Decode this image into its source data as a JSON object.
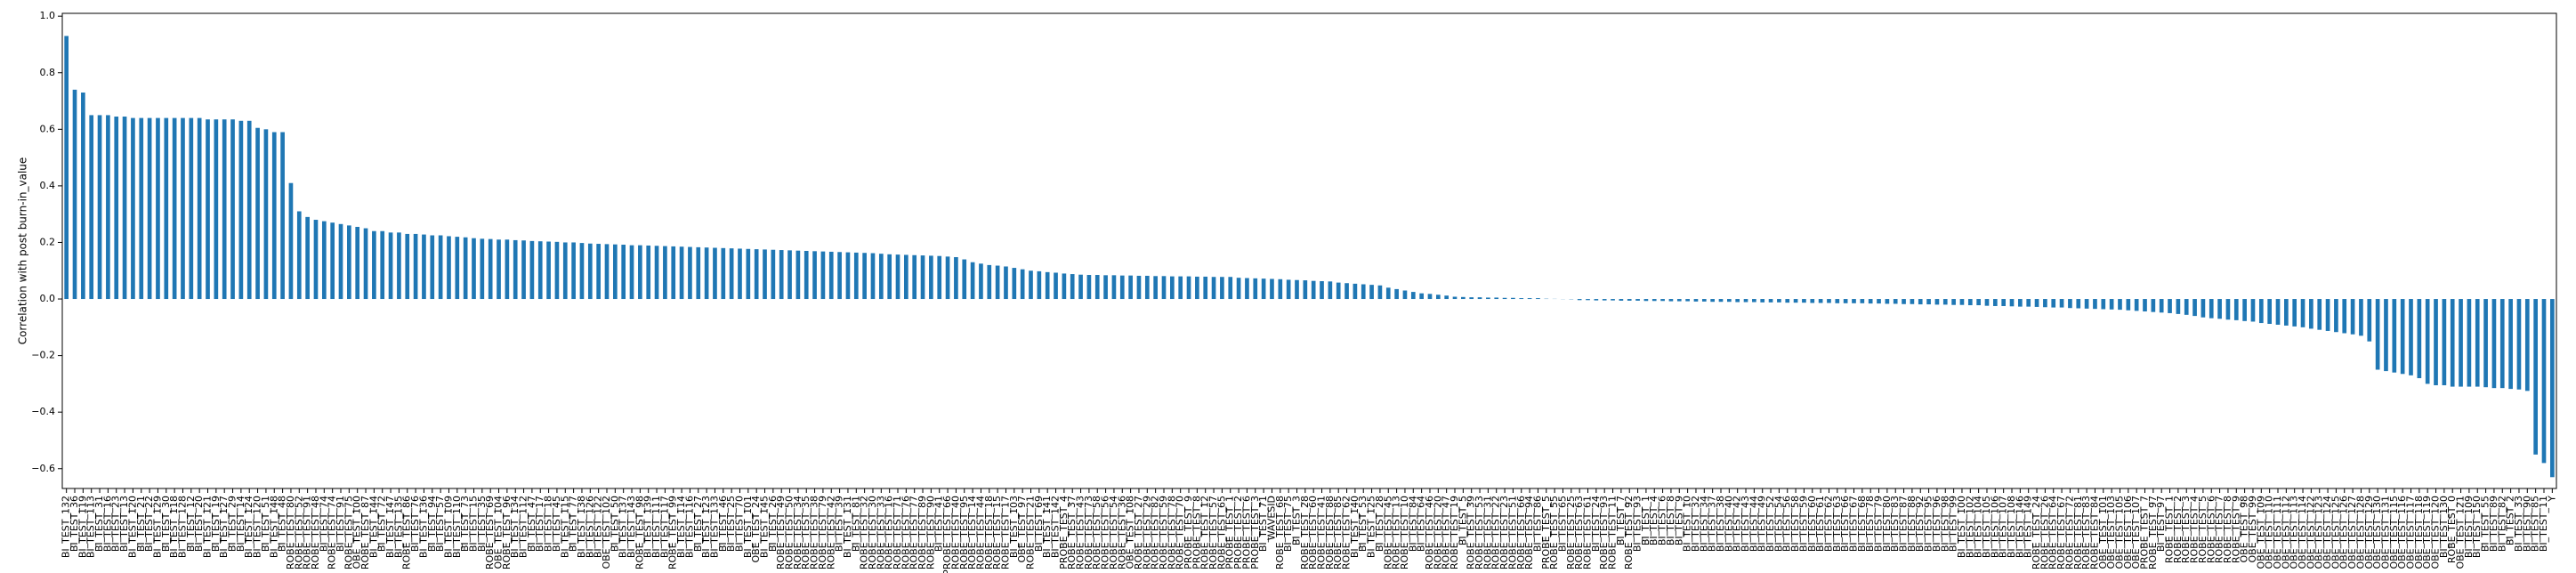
{
  "chart_data": {
    "type": "bar",
    "ylabel": "Correlation with post burn-in_value",
    "color": "#1f77b4",
    "grid": false,
    "ylim": [
      -0.67,
      1.01
    ],
    "yticks": [
      {
        "value": -0.6,
        "label": "−0.6"
      },
      {
        "value": -0.4,
        "label": "−0.4"
      },
      {
        "value": -0.2,
        "label": "−0.2"
      },
      {
        "value": 0,
        "label": "0.0"
      },
      {
        "value": 0.2,
        "label": "0.2"
      },
      {
        "value": 0.4,
        "label": "0.4"
      },
      {
        "value": 0.6,
        "label": "0.6"
      },
      {
        "value": 0.8,
        "label": "0.8"
      },
      {
        "value": 1,
        "label": "1.0"
      }
    ],
    "categories": [
      "BI_TEST_132",
      "BI_TEST_36",
      "BI_TEST_119",
      "BI_TEST_113",
      "BI_TEST_31",
      "BI_TEST_16",
      "BI_TEST_23",
      "BI_TEST_13",
      "BI_TEST_120",
      "BI_TEST_21",
      "BI_TEST_22",
      "BI_TEST_129",
      "BI_TEST_30",
      "BI_TEST_118",
      "BI_TEST_128",
      "BI_TEST_12",
      "BI_TEST_20",
      "BI_TEST_121",
      "BI_TEST_19",
      "BI_TEST_127",
      "BI_TEST_29",
      "BI_TEST_14",
      "BI_TEST_124",
      "BI_TEST_120",
      "BI_TEST_51",
      "BI_TEST_148",
      "BI_TEST_48",
      "ROBE_TEST_80",
      "ROBE_TEST_52",
      "ROBE_TEST_91",
      "ROBE_TEST_48",
      "BI_TEST_74",
      "ROBE_TEST_74",
      "BI_TEST_91",
      "ROBE_TEST_75",
      "OBE_TEST_100",
      "ROBE_TEST_87",
      "BI_TEST_144",
      "BI_TEST_72",
      "BI_TEST_147",
      "BI_TEST_135",
      "ROBE_TEST_86",
      "BI_TEST_76",
      "BI_TEST_136",
      "BI_TEST_94",
      "BI_TEST_57",
      "BI_TEST_109",
      "BI_TEST_110",
      "BI_TEST_73",
      "BI_TEST_15",
      "BI_TEST_35",
      "ROBE_TEST_69",
      "OBE_TEST_104",
      "ROBE_TEST_96",
      "BI_TEST_134",
      "BI_TEST_112",
      "BI_TEST_47",
      "BI_TEST_17",
      "BI_TEST_18",
      "BI_TEST_45",
      "BI_TEST_115",
      "BI_TEST_77",
      "BI_TEST_138",
      "BI_TEST_126",
      "BI_TEST_122",
      "OBE_TEST_102",
      "BI_TEST_50",
      "BI_TEST_137",
      "BI_TEST_143",
      "ROBE_TEST_98",
      "BI_TEST_139",
      "BI_TEST_111",
      "BI_TEST_117",
      "ROBE_TEST_99",
      "BI_TEST_114",
      "BI_TEST_116",
      "BI_TEST_27",
      "BI_TEST_123",
      "BI_TEST_133",
      "BI_TEST_46",
      "BI_TEST_25",
      "BI_TEST_70",
      "BI_TEST_101",
      "OBE_TEST_24",
      "BI_TEST_145",
      "BI_TEST_26",
      "ROBE_TEST_49",
      "ROBE_TEST_50",
      "ROBE_TEST_34",
      "ROBE_TEST_35",
      "ROBE_TEST_38",
      "ROBE_TEST_79",
      "ROBE_TEST_42",
      "BI_TEST_39",
      "BI_TEST_131",
      "BI_TEST_81",
      "ROBE_TEST_32",
      "ROBE_TEST_30",
      "ROBE_TEST_33",
      "ROBE_TEST_16",
      "ROBE_TEST_71",
      "ROBE_TEST_76",
      "ROBE_TEST_77",
      "ROBE_TEST_89",
      "ROBE_TEST_90",
      "BI_TEST_41",
      "PROBE_TEST_66",
      "ROBE_TEST_40",
      "ROBE_TEST_95",
      "ROBE_TEST_14",
      "ROBE_TEST_44",
      "ROBE_TEST_18",
      "ROBE_TEST_15",
      "ROBE_TEST_17",
      "BI_TEST_103",
      "OBE_TEST_97",
      "ROBE_TEST_21",
      "BI_TEST_69",
      "BI_TEST_141",
      "BI_TEST_142",
      "PROBE_TEST_4",
      "ROBE_TEST_37",
      "ROBE_TEST_43",
      "ROBE_TEST_73",
      "ROBE_TEST_58",
      "ROBE_TEST_56",
      "ROBE_TEST_54",
      "ROBE_TEST_36",
      "OBE_TEST_108",
      "ROBE_TEST_27",
      "ROBE_TEST_29",
      "ROBE_TEST_82",
      "ROBE_TEST_59",
      "ROBE_TEST_78",
      "ROBE_TEST_70",
      "PROBE_TEST_9",
      "PROBE_TEST_8",
      "ROBE_TEST_12",
      "ROBE_TEST_57",
      "ROBE_TEST_65",
      "PROBE_TEST_1",
      "PROBE_TEST_2",
      "PROBE_TEST_6",
      "PROBE_TEST_3",
      "BI_TEST_71",
      "WAVESID",
      "ROBE_TEST_68",
      "BI_TEST_75",
      "BI_TEST_3",
      "ROBE_TEST_28",
      "ROBE_TEST_60",
      "ROBE_TEST_41",
      "ROBE_TEST_88",
      "ROBE_TEST_85",
      "ROBE_TEST_62",
      "BI_TEST_140",
      "BI_TEST_53",
      "BI_TEST_125",
      "BI_TEST_28",
      "ROBE_TEST_45",
      "ROBE_TEST_13",
      "ROBE_TEST_10",
      "BI_TEST_84",
      "BI_TEST_64",
      "ROBE_TEST_46",
      "ROBE_TEST_20",
      "ROBE_TEST_47",
      "ROBE_TEST_19",
      "BI_TEST_5",
      "ROBE_TEST_39",
      "ROBE_TEST_53",
      "ROBE_TEST_31",
      "ROBE_TEST_22",
      "ROBE_TEST_23",
      "ROBE_TEST_51",
      "ROBE_TEST_66",
      "ROBE_TEST_94",
      "BI_TEST_86",
      "PROBE_TEST_5",
      "ROBE_TEST_55",
      "BI_TEST_65",
      "ROBE_TEST_25",
      "ROBE_TEST_63",
      "ROBE_TEST_61",
      "BI_TEST_24",
      "ROBE_TEST_93",
      "ROBE_TEST_11",
      "BI_TEST_7",
      "ROBE_TEST_92",
      "BI_TEST_93",
      "BI_TEST_1",
      "BI_TEST_4",
      "BI_TEST_6",
      "BI_TEST_8",
      "BI_TEST_9",
      "BI_TEST_10",
      "BI_TEST_32",
      "BI_TEST_34",
      "BI_TEST_37",
      "BI_TEST_38",
      "BI_TEST_40",
      "BI_TEST_42",
      "BI_TEST_43",
      "BI_TEST_44",
      "BI_TEST_49",
      "BI_TEST_52",
      "BI_TEST_54",
      "BI_TEST_56",
      "BI_TEST_58",
      "BI_TEST_59",
      "BI_TEST_60",
      "BI_TEST_61",
      "BI_TEST_62",
      "BI_TEST_63",
      "BI_TEST_66",
      "BI_TEST_67",
      "BI_TEST_68",
      "BI_TEST_78",
      "BI_TEST_79",
      "BI_TEST_80",
      "BI_TEST_83",
      "BI_TEST_87",
      "BI_TEST_88",
      "BI_TEST_92",
      "BI_TEST_95",
      "BI_TEST_96",
      "BI_TEST_98",
      "BI_TEST_99",
      "BI_TEST_100",
      "BI_TEST_102",
      "BI_TEST_104",
      "BI_TEST_105",
      "BI_TEST_106",
      "BI_TEST_107",
      "BI_TEST_108",
      "BI_TEST_146",
      "BI_TEST_149",
      "ROBE_TEST_24",
      "ROBE_TEST_26",
      "ROBE_TEST_64",
      "ROBE_TEST_67",
      "ROBE_TEST_72",
      "ROBE_TEST_81",
      "ROBE_TEST_83",
      "ROBE_TEST_84",
      "OBE_TEST_101",
      "OBE_TEST_103",
      "OBE_TEST_105",
      "OBE_TEST_106",
      "OBE_TEST_107",
      "PROBE_TEST_7",
      "ROBE_TEST_97",
      "BI_TEST_97",
      "ROBE_TEST_1",
      "ROBE_TEST_2",
      "ROBE_TEST_3",
      "ROBE_TEST_4",
      "ROBE_TEST_5",
      "ROBE_TEST_6",
      "ROBE_TEST_7",
      "ROBE_TEST_8",
      "ROBE_TEST_9",
      "OBE_TEST_98",
      "OBE_TEST_99",
      "OBE_TEST_109",
      "OBE_TEST_110",
      "OBE_TEST_111",
      "OBE_TEST_112",
      "OBE_TEST_113",
      "OBE_TEST_114",
      "OBE_TEST_122",
      "OBE_TEST_123",
      "OBE_TEST_124",
      "OBE_TEST_125",
      "OBE_TEST_126",
      "OBE_TEST_127",
      "OBE_TEST_128",
      "OBE_TEST_129",
      "OBE_TEST_130",
      "OBE_TEST_131",
      "OBE_TEST_115",
      "OBE_TEST_116",
      "OBE_TEST_117",
      "OBE_TEST_118",
      "OBE_TEST_119",
      "OBE_TEST_120",
      "BI_TEST_130",
      "ROBE_TEST_0",
      "OBE_TEST_121",
      "BI_TEST_109",
      "BI_TEST_150",
      "BI_TEST_55",
      "BI_TEST_89",
      "BI_TEST_82",
      "BI_TEST_2",
      "BI_TEST_33",
      "BI_TEST_90",
      "BI_TEST_85",
      "BI_TEST_11",
      "Y"
    ],
    "values": [
      0.93,
      0.74,
      0.73,
      0.65,
      0.65,
      0.65,
      0.645,
      0.645,
      0.64,
      0.64,
      0.64,
      0.64,
      0.64,
      0.64,
      0.64,
      0.64,
      0.64,
      0.635,
      0.635,
      0.635,
      0.635,
      0.63,
      0.63,
      0.605,
      0.6,
      0.59,
      0.59,
      0.41,
      0.31,
      0.29,
      0.28,
      0.275,
      0.27,
      0.265,
      0.26,
      0.255,
      0.25,
      0.24,
      0.24,
      0.235,
      0.235,
      0.23,
      0.23,
      0.228,
      0.225,
      0.225,
      0.222,
      0.22,
      0.218,
      0.215,
      0.213,
      0.212,
      0.21,
      0.21,
      0.208,
      0.207,
      0.205,
      0.204,
      0.203,
      0.202,
      0.2,
      0.2,
      0.198,
      0.196,
      0.195,
      0.194,
      0.193,
      0.192,
      0.19,
      0.19,
      0.189,
      0.188,
      0.187,
      0.186,
      0.185,
      0.184,
      0.183,
      0.182,
      0.181,
      0.18,
      0.179,
      0.178,
      0.177,
      0.176,
      0.175,
      0.174,
      0.173,
      0.172,
      0.171,
      0.17,
      0.169,
      0.168,
      0.167,
      0.166,
      0.165,
      0.164,
      0.163,
      0.162,
      0.16,
      0.158,
      0.157,
      0.156,
      0.155,
      0.154,
      0.153,
      0.152,
      0.15,
      0.148,
      0.14,
      0.13,
      0.125,
      0.12,
      0.118,
      0.115,
      0.11,
      0.105,
      0.1,
      0.098,
      0.095,
      0.093,
      0.09,
      0.088,
      0.086,
      0.085,
      0.085,
      0.084,
      0.084,
      0.083,
      0.083,
      0.082,
      0.082,
      0.081,
      0.081,
      0.08,
      0.08,
      0.08,
      0.079,
      0.079,
      0.078,
      0.078,
      0.078,
      0.075,
      0.074,
      0.073,
      0.072,
      0.071,
      0.07,
      0.068,
      0.067,
      0.066,
      0.064,
      0.063,
      0.062,
      0.058,
      0.056,
      0.054,
      0.052,
      0.05,
      0.048,
      0.04,
      0.035,
      0.03,
      0.025,
      0.02,
      0.018,
      0.015,
      0.012,
      0.008,
      0.007,
      0.006,
      0.006,
      0.005,
      0.005,
      0.004,
      0.004,
      0.003,
      0.003,
      0.003,
      0.001,
      0.0005,
      -0.0005,
      -0.001,
      -0.004,
      -0.004,
      -0.005,
      -0.005,
      -0.005,
      -0.006,
      -0.006,
      -0.006,
      -0.007,
      -0.007,
      -0.007,
      -0.008,
      -0.008,
      -0.008,
      -0.009,
      -0.009,
      -0.01,
      -0.01,
      -0.01,
      -0.011,
      -0.011,
      -0.011,
      -0.012,
      -0.012,
      -0.012,
      -0.013,
      -0.013,
      -0.013,
      -0.014,
      -0.014,
      -0.014,
      -0.015,
      -0.015,
      -0.015,
      -0.015,
      -0.016,
      -0.016,
      -0.017,
      -0.017,
      -0.018,
      -0.018,
      -0.019,
      -0.019,
      -0.02,
      -0.02,
      -0.021,
      -0.021,
      -0.022,
      -0.022,
      -0.024,
      -0.025,
      -0.025,
      -0.026,
      -0.027,
      -0.027,
      -0.028,
      -0.029,
      -0.03,
      -0.03,
      -0.032,
      -0.033,
      -0.034,
      -0.035,
      -0.036,
      -0.037,
      -0.038,
      -0.04,
      -0.042,
      -0.044,
      -0.046,
      -0.048,
      -0.05,
      -0.053,
      -0.056,
      -0.06,
      -0.065,
      -0.068,
      -0.07,
      -0.073,
      -0.075,
      -0.078,
      -0.08,
      -0.085,
      -0.088,
      -0.091,
      -0.094,
      -0.097,
      -0.1,
      -0.105,
      -0.109,
      -0.113,
      -0.117,
      -0.121,
      -0.125,
      -0.13,
      -0.15,
      -0.25,
      -0.255,
      -0.26,
      -0.265,
      -0.27,
      -0.28,
      -0.3,
      -0.305,
      -0.305,
      -0.31,
      -0.31,
      -0.31,
      -0.31,
      -0.312,
      -0.315,
      -0.315,
      -0.318,
      -0.32,
      -0.325,
      -0.55,
      -0.58,
      -0.63
    ]
  }
}
